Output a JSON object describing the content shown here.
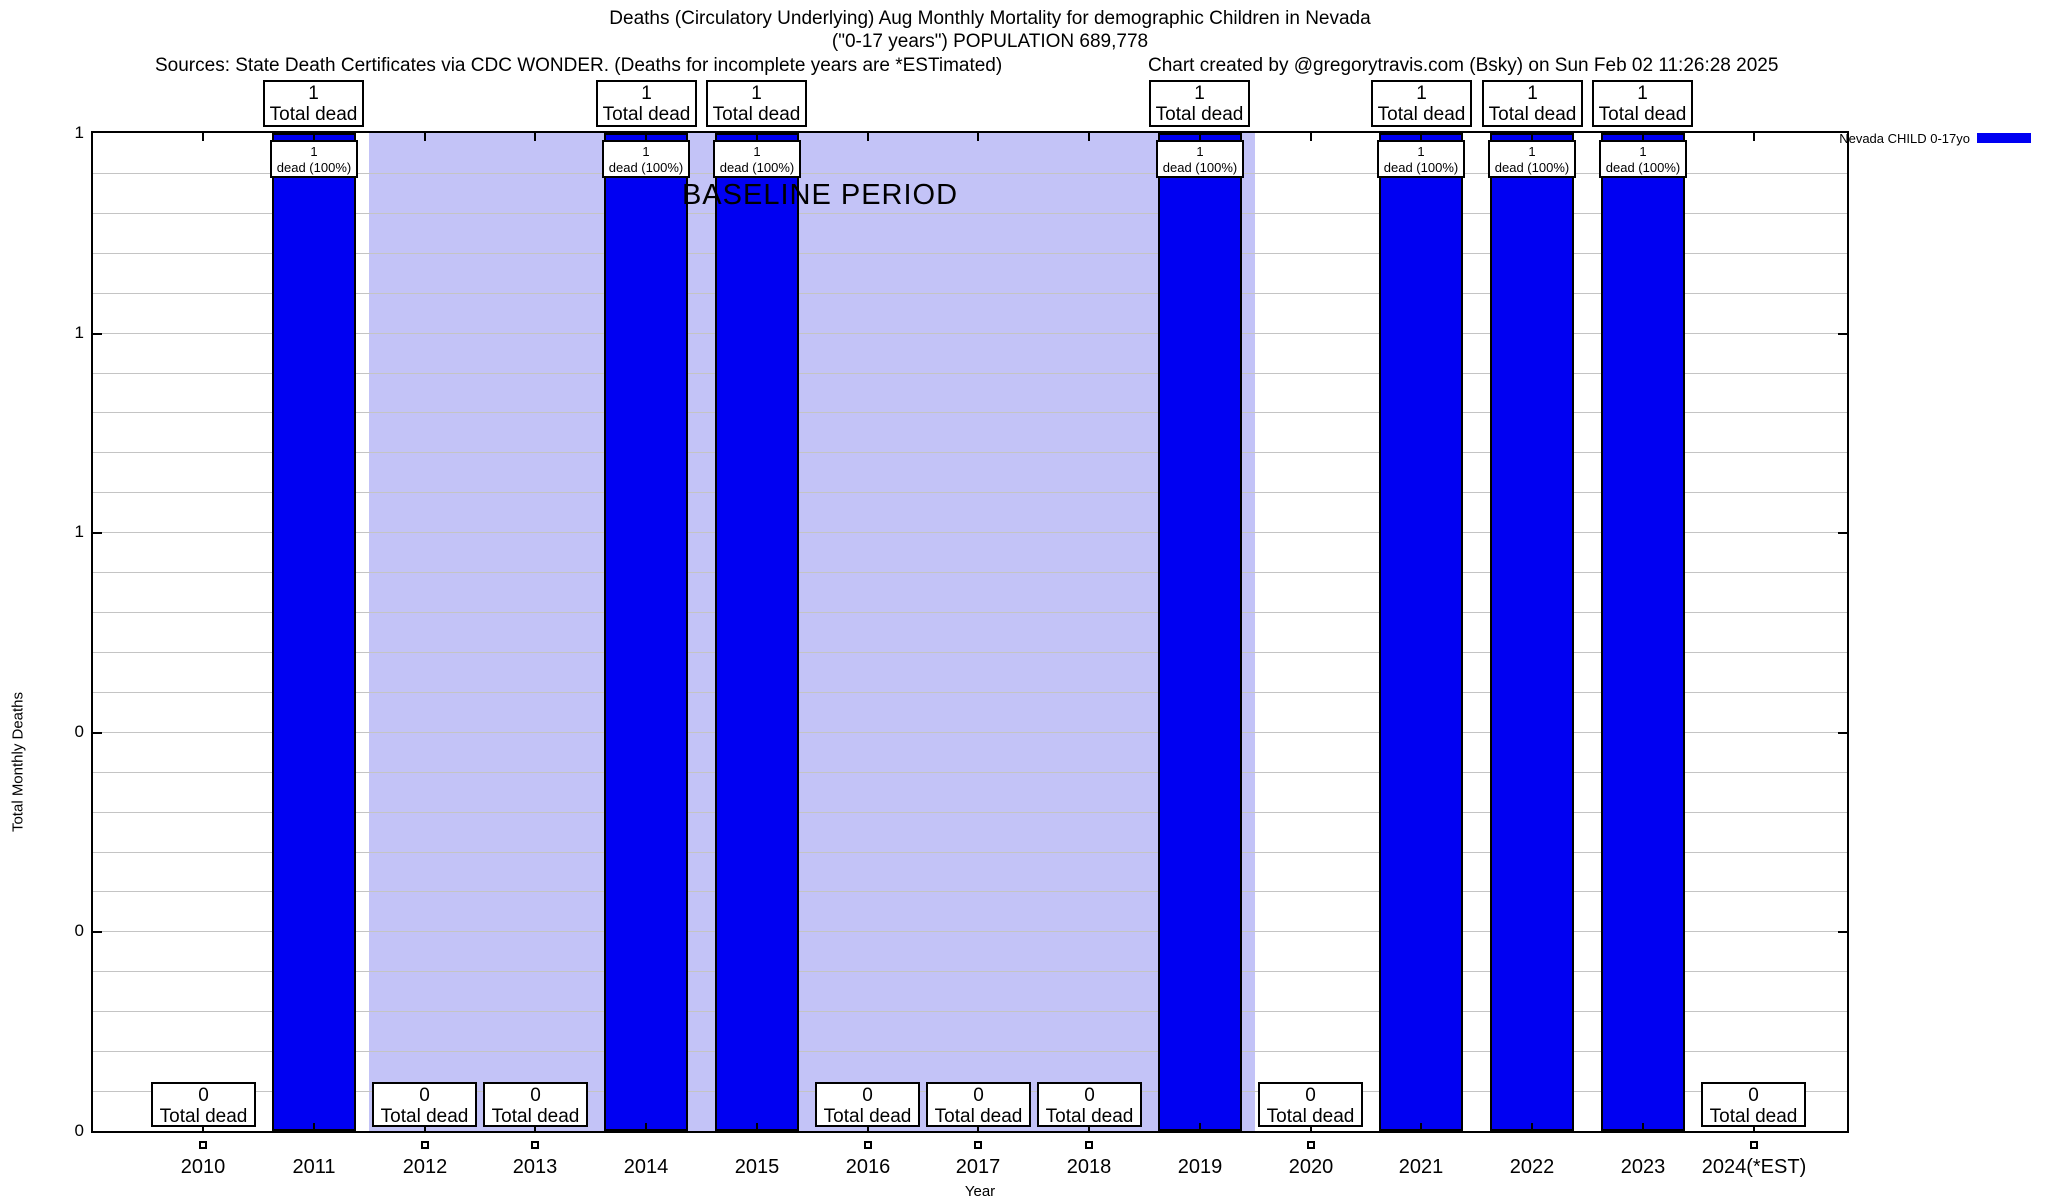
{
  "header": {
    "title_line1": "Deaths (Circulatory Underlying) Aug Monthly Mortality for demographic Children in Nevada",
    "title_line2": "(\"0-17 years\") POPULATION 689,778",
    "source_note": "Sources: State Death Certificates via CDC WONDER. (Deaths for incomplete years are *ESTimated)",
    "credit_note": "Chart created by @gregorytravis.com (Bsky) on Sun Feb 02 11:26:28 2025"
  },
  "chart_data": {
    "type": "bar",
    "title": "Deaths (Circulatory Underlying) Aug Monthly Mortality for demographic Children in Nevada (\"0-17 years\") POPULATION 689,778",
    "xlabel": "Year",
    "ylabel": "Total Monthly Deaths",
    "ylim": [
      0,
      1
    ],
    "grid": true,
    "ytick_values": [
      0,
      0.2,
      0.4,
      0.6,
      0.8,
      1.0
    ],
    "ytick_labels_bottom_to_top": [
      "0",
      "0",
      "0",
      "1",
      "1",
      "1"
    ],
    "categories": [
      "2010",
      "2011",
      "2012",
      "2013",
      "2014",
      "2015",
      "2016",
      "2017",
      "2018",
      "2019",
      "2020",
      "2021",
      "2022",
      "2023",
      "2024(*EST)"
    ],
    "series": [
      {
        "name": "Nevada CHILD 0-17yo",
        "values": [
          0,
          1,
          0,
          0,
          1,
          1,
          0,
          0,
          0,
          1,
          0,
          1,
          1,
          1,
          0
        ]
      }
    ],
    "values": [
      0,
      1,
      0,
      0,
      1,
      1,
      0,
      0,
      0,
      1,
      0,
      1,
      1,
      1,
      0
    ],
    "bar_annotation_line2": "dead (100%)",
    "callout_line2": "Total dead",
    "baseline_band": {
      "label": "BASELINE PERIOD",
      "x_start": 2011.5,
      "x_end": 2019.5,
      "color": "#c3c3f7"
    },
    "legend": {
      "label": "Nevada CHILD 0-17yo",
      "color": "#0000f2",
      "position": "top-right-outside"
    }
  },
  "colors": {
    "bar": "#0000f2",
    "band": "#c3c3f7",
    "grid": "#c4c4c4",
    "text": "#000000",
    "background": "#ffffff"
  }
}
